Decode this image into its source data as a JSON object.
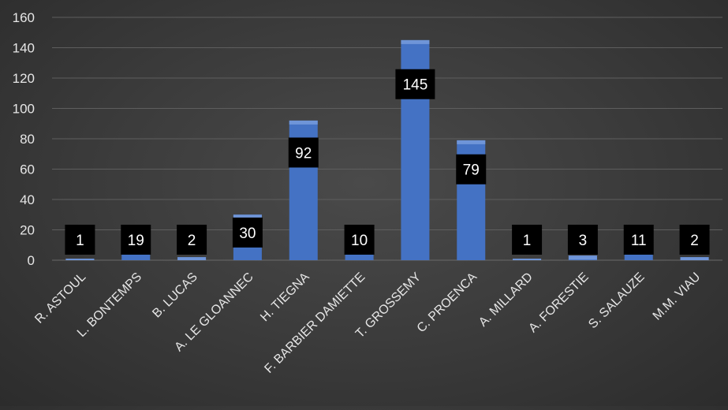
{
  "chart_data": {
    "type": "bar",
    "title": "",
    "xlabel": "",
    "ylabel": "",
    "categories": [
      "R. ASTOUL",
      "L. BONTEMPS",
      "B. LUCAS",
      "A. LE GLOANNEC",
      "H. TIEGNA",
      "F. BARBIER DAMIETTE",
      "T. GROSSEMY",
      "C. PROENCA",
      "A. MILLARD",
      "A. FORESTIE",
      "S. SALAUZE",
      "M.M. VIAU"
    ],
    "series": [
      {
        "values": [
          1,
          19,
          2,
          30,
          92,
          10,
          145,
          79,
          1,
          3,
          11,
          2
        ]
      }
    ],
    "ylim": [
      0,
      160
    ],
    "yticks": [
      0,
      20,
      40,
      60,
      80,
      100,
      120,
      140,
      160
    ],
    "grid": true,
    "data_labels": true,
    "legend": "none",
    "colors": {
      "bar": "#4472c4",
      "label_box": "#000000",
      "label_text": "#ffffff",
      "axis_text": "#e6e6e6",
      "gridline": "#5e5e5e"
    }
  }
}
